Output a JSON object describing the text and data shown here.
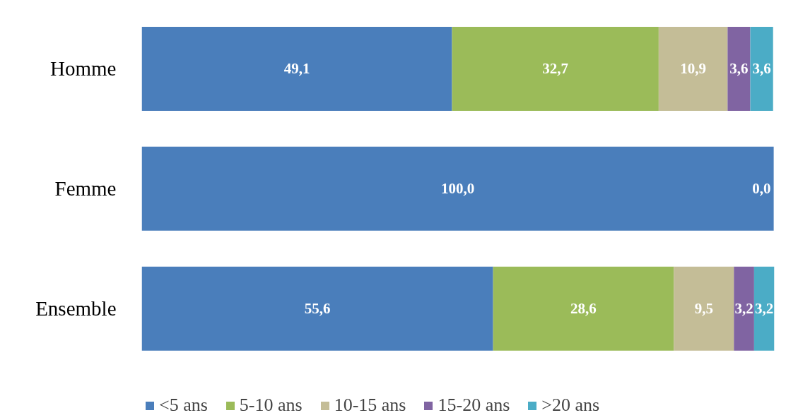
{
  "chart_data": {
    "type": "bar",
    "orientation": "horizontal",
    "stacked": true,
    "categories": [
      "Homme",
      "Femme",
      "Ensemble"
    ],
    "series": [
      {
        "name": "<5 ans",
        "color": "#4a7ebb",
        "values": [
          49.1,
          100.0,
          55.6
        ],
        "value_labels": [
          "49,1",
          "100,0",
          "55,6"
        ]
      },
      {
        "name": "5-10 ans",
        "color": "#9bbb59",
        "values": [
          32.7,
          0.0,
          28.6
        ],
        "value_labels": [
          "32,7",
          null,
          "28,6"
        ]
      },
      {
        "name": "10-15 ans",
        "color": "#c4bd97",
        "values": [
          10.9,
          0.0,
          9.5
        ],
        "value_labels": [
          "10,9",
          null,
          "9,5"
        ]
      },
      {
        "name": "15-20 ans",
        "color": "#8064a2",
        "values": [
          3.6,
          0.0,
          3.2
        ],
        "value_labels": [
          "3,6",
          null,
          "3,2"
        ]
      },
      {
        "name": ">20 ans",
        "color": "#4bacc6",
        "values": [
          3.6,
          0.0,
          3.2
        ],
        "value_labels": [
          "3,6",
          "0,0",
          "3,2"
        ]
      }
    ],
    "legend": "bottom"
  }
}
